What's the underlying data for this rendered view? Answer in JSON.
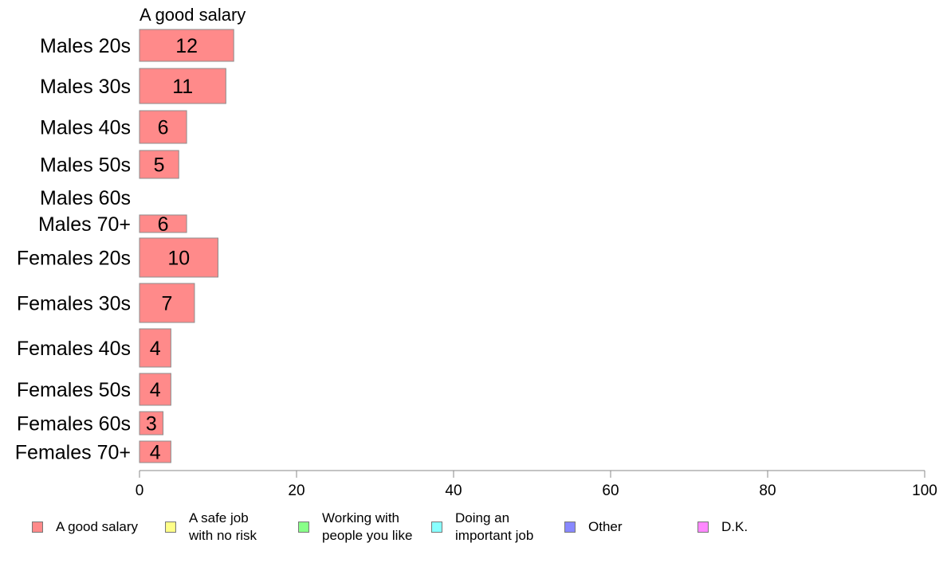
{
  "chart_data": {
    "type": "bar",
    "orientation": "horizontal",
    "stacked": true,
    "title": "A good salary",
    "categories": [
      "Males 20s",
      "Males 30s",
      "Males 40s",
      "Males 50s",
      "Males 60s",
      "Males 70+",
      "Females 20s",
      "Females 30s",
      "Females 40s",
      "Females 50s",
      "Females 60s",
      "Females 70+"
    ],
    "series": [
      {
        "name": "A good salary",
        "values": [
          12,
          11,
          6,
          5,
          0,
          6,
          10,
          7,
          4,
          4,
          3,
          4
        ],
        "color": "#ff8a8a"
      },
      {
        "name": "A safe job\nwith no risk",
        "values": [
          null,
          null,
          null,
          null,
          null,
          null,
          null,
          null,
          null,
          null,
          null,
          null
        ],
        "color": "#ffff88"
      },
      {
        "name": "Working with\npeople you like",
        "values": [
          null,
          null,
          null,
          null,
          null,
          null,
          null,
          null,
          null,
          null,
          null,
          null
        ],
        "color": "#88ff88"
      },
      {
        "name": "Doing an\nimportant job",
        "values": [
          null,
          null,
          null,
          null,
          null,
          null,
          null,
          null,
          null,
          null,
          null,
          null
        ],
        "color": "#88ffff"
      },
      {
        "name": "Other",
        "values": [
          null,
          null,
          null,
          null,
          null,
          null,
          null,
          null,
          null,
          null,
          null,
          null
        ],
        "color": "#8888ff"
      },
      {
        "name": "D.K.",
        "values": [
          null,
          null,
          null,
          null,
          null,
          null,
          null,
          null,
          null,
          null,
          null,
          null
        ],
        "color": "#ff88ff"
      }
    ],
    "data_labels": [
      "12",
      "11",
      "6",
      "5",
      "",
      "6",
      "10",
      "7",
      "4",
      "4",
      "3",
      "4"
    ],
    "xlim": [
      0,
      100
    ],
    "xticks": [
      0,
      20,
      40,
      60,
      80,
      100
    ],
    "grid": false,
    "legend_position": "bottom"
  }
}
